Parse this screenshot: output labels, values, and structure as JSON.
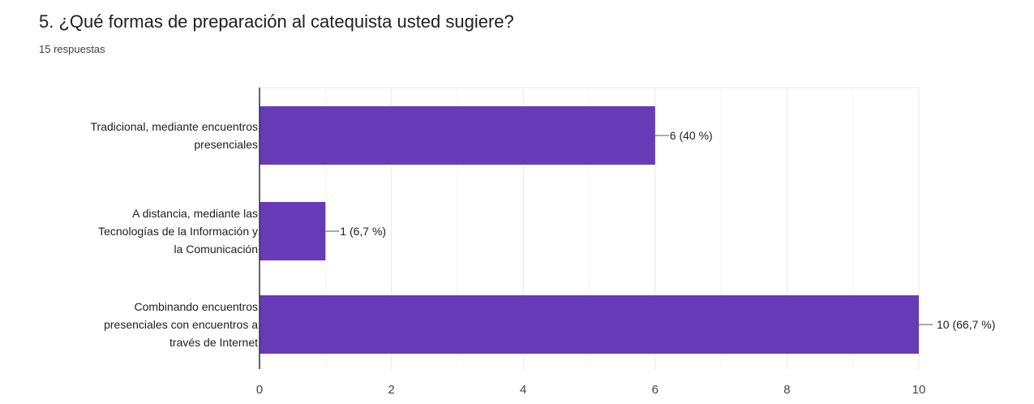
{
  "question": {
    "title": "5. ¿Qué formas de preparación al catequista usted sugiere?",
    "responses": "15 respuestas"
  },
  "colors": {
    "bar": "#673ab7",
    "grid": "#e8e8e8",
    "axis": "#333333",
    "label": "#212121"
  },
  "chart_data": {
    "type": "bar",
    "orientation": "horizontal",
    "categories": [
      [
        "Tradicional, mediante encuentros",
        "presenciales"
      ],
      [
        "A distancia, mediante las",
        "Tecnologías de la Información y",
        "la Comunicación"
      ],
      [
        "Combinando encuentros",
        "presenciales con encuentros a",
        "través de Internet"
      ]
    ],
    "values": [
      6,
      1,
      10
    ],
    "value_labels": [
      "6 (40 %)",
      "1 (6,7 %)",
      "10 (66,7 %)"
    ],
    "xlim": [
      0,
      10
    ],
    "xticks": [
      0,
      2,
      4,
      6,
      8,
      10
    ],
    "grid": true,
    "legend": "none"
  }
}
